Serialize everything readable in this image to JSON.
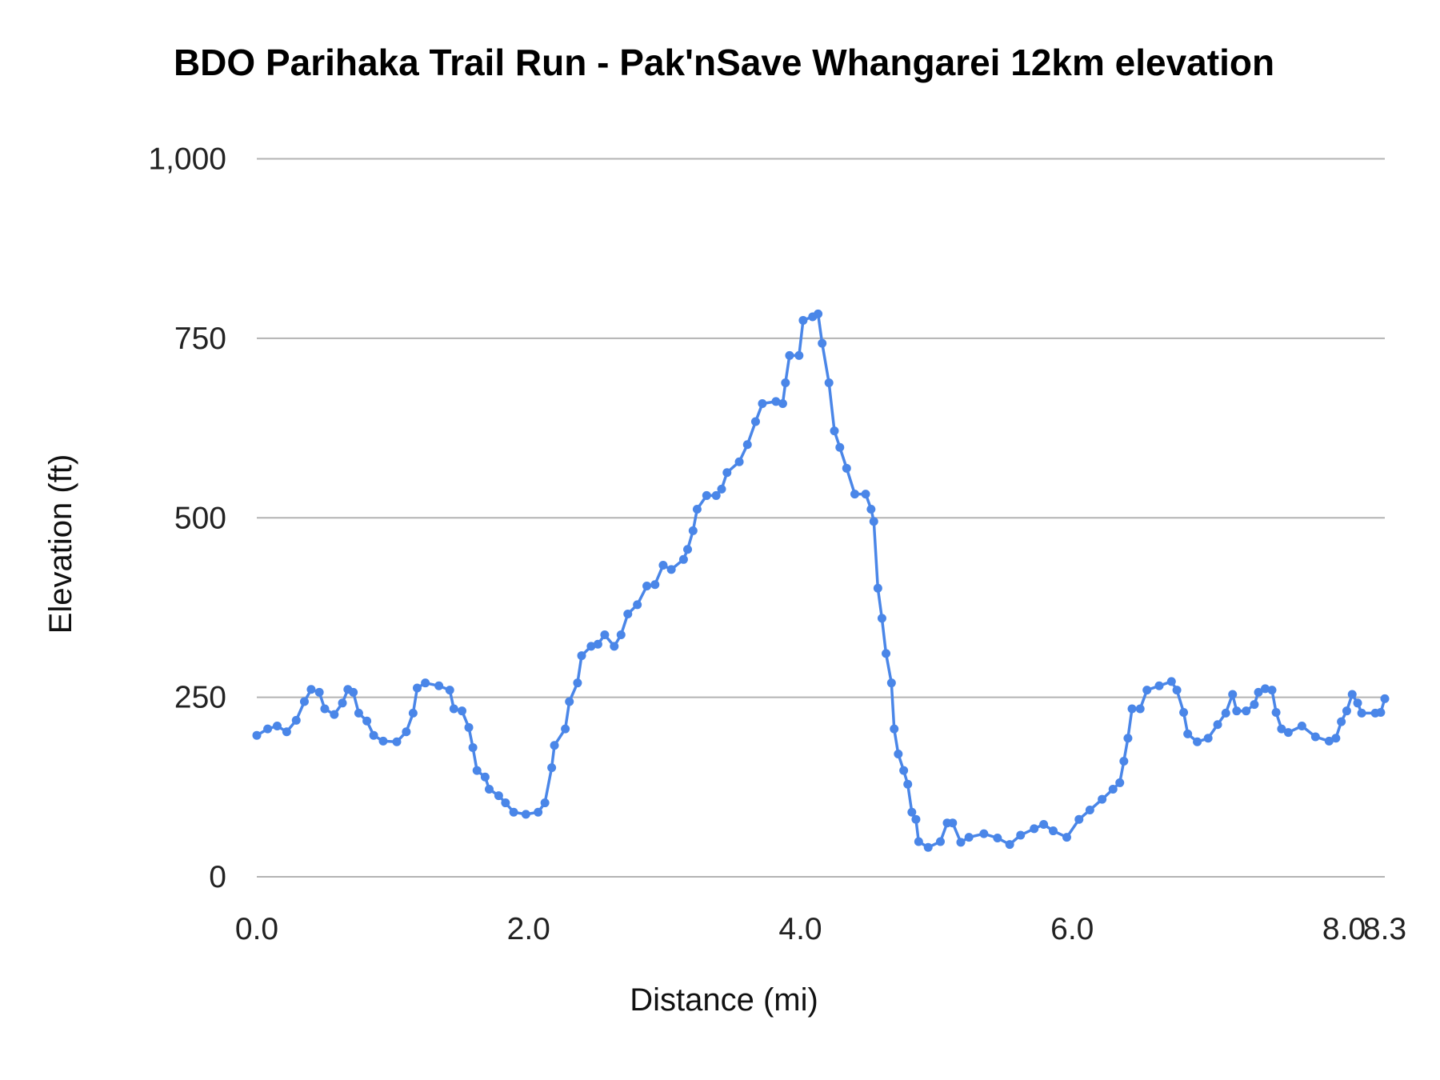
{
  "chart_data": {
    "type": "line",
    "title": "BDO Parihaka Trail Run - Pak'nSave Whangarei 12km elevation",
    "xlabel": "Distance (mi)",
    "ylabel": "Elevation (ft)",
    "xlim": [
      0,
      8.3
    ],
    "ylim": [
      0,
      1000
    ],
    "x_ticks": [
      "0.0",
      "2.0",
      "4.0",
      "6.0",
      "8.0",
      "8.3"
    ],
    "x_tick_values": [
      0,
      2,
      4,
      6,
      8,
      8.3
    ],
    "y_ticks": [
      "0",
      "250",
      "500",
      "750",
      "1,000"
    ],
    "y_tick_values": [
      0,
      250,
      500,
      750,
      1000
    ],
    "grid": true,
    "legend": "none",
    "color": "#4a86e8",
    "markers": true,
    "x": [
      0.0,
      0.08,
      0.15,
      0.22,
      0.29,
      0.35,
      0.4,
      0.46,
      0.5,
      0.57,
      0.63,
      0.67,
      0.71,
      0.75,
      0.81,
      0.86,
      0.93,
      1.03,
      1.1,
      1.15,
      1.18,
      1.24,
      1.34,
      1.42,
      1.45,
      1.51,
      1.56,
      1.59,
      1.62,
      1.68,
      1.71,
      1.78,
      1.83,
      1.89,
      1.98,
      2.07,
      2.12,
      2.17,
      2.19,
      2.27,
      2.3,
      2.36,
      2.39,
      2.46,
      2.51,
      2.56,
      2.63,
      2.68,
      2.73,
      2.8,
      2.87,
      2.93,
      2.99,
      3.05,
      3.14,
      3.17,
      3.21,
      3.24,
      3.31,
      3.38,
      3.42,
      3.46,
      3.55,
      3.61,
      3.67,
      3.72,
      3.82,
      3.87,
      3.89,
      3.92,
      3.99,
      4.02,
      4.09,
      4.13,
      4.16,
      4.21,
      4.25,
      4.29,
      4.34,
      4.4,
      4.48,
      4.52,
      4.54,
      4.57,
      4.6,
      4.63,
      4.67,
      4.69,
      4.72,
      4.76,
      4.79,
      4.82,
      4.85,
      4.87,
      4.94,
      5.03,
      5.08,
      5.12,
      5.18,
      5.24,
      5.35,
      5.45,
      5.54,
      5.62,
      5.72,
      5.79,
      5.86,
      5.96,
      6.05,
      6.13,
      6.22,
      6.3,
      6.35,
      6.38,
      6.41,
      6.44,
      6.5,
      6.55,
      6.64,
      6.73,
      6.77,
      6.82,
      6.85,
      6.92,
      7.0,
      7.07,
      7.13,
      7.18,
      7.21,
      7.28,
      7.34,
      7.37,
      7.42,
      7.47,
      7.5,
      7.54,
      7.59,
      7.69,
      7.79,
      7.89,
      7.94,
      7.98,
      8.02,
      8.06,
      8.1,
      8.13,
      8.23,
      8.27,
      8.3
    ],
    "y": [
      197,
      206,
      210,
      202,
      218,
      244,
      261,
      257,
      234,
      226,
      242,
      261,
      257,
      228,
      217,
      197,
      189,
      188,
      202,
      228,
      263,
      270,
      266,
      260,
      234,
      231,
      208,
      180,
      148,
      139,
      122,
      113,
      103,
      90,
      87,
      90,
      103,
      152,
      183,
      206,
      244,
      270,
      308,
      321,
      324,
      337,
      321,
      337,
      366,
      379,
      405,
      407,
      434,
      428,
      442,
      456,
      482,
      512,
      531,
      531,
      540,
      563,
      578,
      602,
      634,
      659,
      662,
      659,
      688,
      726,
      726,
      775,
      780,
      784,
      743,
      688,
      621,
      598,
      569,
      533,
      533,
      512,
      495,
      402,
      360,
      311,
      270,
      206,
      171,
      148,
      129,
      90,
      80,
      49,
      41,
      49,
      75,
      75,
      48,
      55,
      60,
      54,
      45,
      58,
      67,
      73,
      64,
      55,
      80,
      93,
      108,
      122,
      131,
      161,
      193,
      234,
      234,
      260,
      266,
      272,
      260,
      229,
      199,
      188,
      193,
      212,
      228,
      254,
      231,
      231,
      240,
      257,
      262,
      260,
      229,
      206,
      201,
      210,
      195,
      189,
      193,
      216,
      231,
      254,
      242,
      228,
      228,
      229,
      248
    ]
  }
}
